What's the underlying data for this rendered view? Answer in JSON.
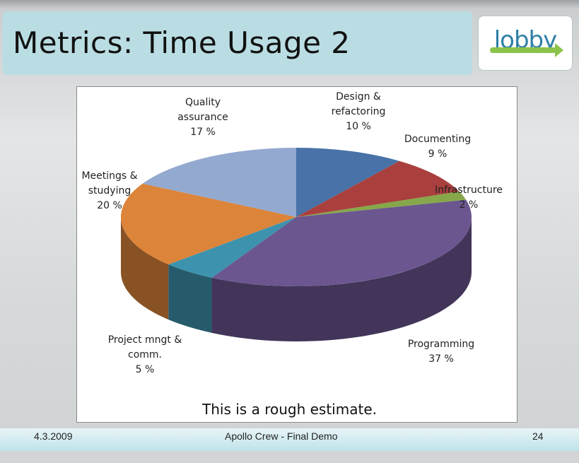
{
  "slide": {
    "title": "Metrics: Time Usage 2",
    "logo_text": "lobby",
    "caption": "This is a rough estimate.",
    "footer_date": "4.3.2009",
    "footer_center": "Apollo Crew - Final Demo",
    "page_number": "24"
  },
  "chart_data": {
    "type": "pie",
    "title": "",
    "three_d": true,
    "slices": [
      {
        "label": "Design & refactoring",
        "value": 10,
        "value_label": "10 %",
        "color": "#4872a8"
      },
      {
        "label": "Documenting",
        "value": 9,
        "value_label": "9 %",
        "color": "#a9403e"
      },
      {
        "label": "Infrastructure",
        "value": 2,
        "value_label": "2 %",
        "color": "#86a84a"
      },
      {
        "label": "Programming",
        "value": 37,
        "value_label": "37 %",
        "color": "#6b5690"
      },
      {
        "label": "Project mngt & comm.",
        "value": 5,
        "value_label": "5 %",
        "color": "#3d93ad"
      },
      {
        "label": "Meetings & studying",
        "value": 20,
        "value_label": "20 %",
        "color": "#dc843a"
      },
      {
        "label": "Quality assurance",
        "value": 17,
        "value_label": "17 %",
        "color": "#94a9cf"
      }
    ]
  }
}
